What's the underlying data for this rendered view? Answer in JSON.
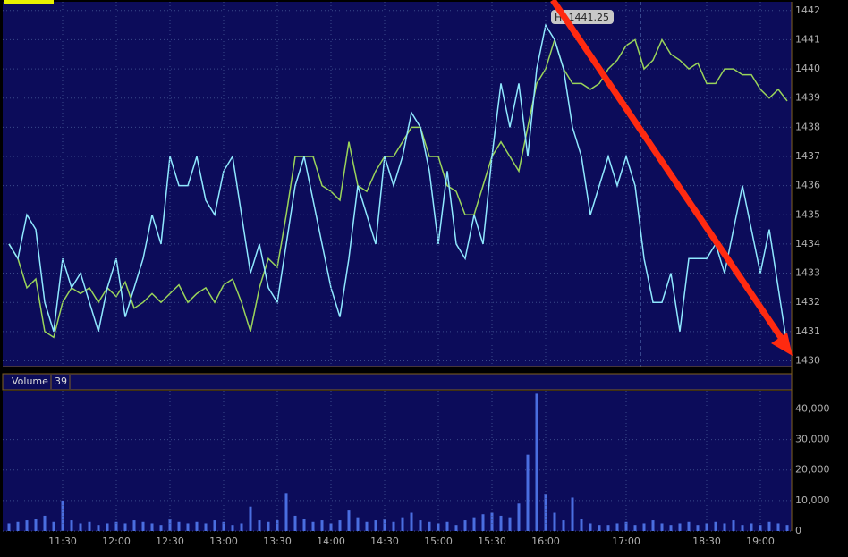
{
  "chart_data": [
    {
      "type": "line",
      "annotation": "H: 1441.25",
      "categories": [
        null,
        null,
        null,
        null,
        null,
        null,
        "11:30",
        null,
        null,
        null,
        null,
        null,
        "12:00",
        null,
        null,
        null,
        null,
        null,
        "12:30",
        null,
        null,
        null,
        null,
        null,
        "13:00",
        null,
        null,
        null,
        null,
        null,
        "13:30",
        null,
        null,
        null,
        null,
        null,
        "14:00",
        null,
        null,
        null,
        null,
        null,
        "14:30",
        null,
        null,
        null,
        null,
        null,
        "15:00",
        null,
        null,
        null,
        null,
        null,
        "15:30",
        null,
        null,
        null,
        null,
        null,
        "16:00",
        null,
        null,
        null,
        null,
        null,
        null,
        null,
        null,
        "17:00",
        null,
        null,
        null,
        null,
        null,
        null,
        null,
        null,
        "18:30",
        null,
        null,
        null,
        null,
        null,
        "19:00",
        null,
        null,
        null
      ],
      "series": [
        {
          "color": "#9ad45a",
          "values": [
            1434,
            1433.5,
            1432.5,
            1432.8,
            1431,
            1430.8,
            1432,
            1432.5,
            1432.3,
            1432.5,
            1432,
            1432.5,
            1432.2,
            1432.7,
            1431.8,
            1432,
            1432.3,
            1432,
            1432.3,
            1432.6,
            1432,
            1432.3,
            1432.5,
            1432,
            1432.6,
            1432.8,
            1432,
            1431,
            1432.5,
            1433.5,
            1433.2,
            1435,
            1437,
            1437,
            1437,
            1436,
            1435.8,
            1435.5,
            1437.5,
            1436,
            1435.8,
            1436.5,
            1437,
            1437,
            1437.5,
            1438,
            1438,
            1437,
            1437,
            1436,
            1435.8,
            1435,
            1435,
            1436,
            1437,
            1437.5,
            1437,
            1436.5,
            1438,
            1439.5,
            1440,
            1441,
            1440,
            1439.5,
            1439.5,
            1439.3,
            1439.5,
            1440,
            1440.3,
            1440.8,
            1441,
            1440,
            1440.3,
            1441,
            1440.5,
            1440.3,
            1440,
            1440.2,
            1439.5,
            1439.5,
            1440,
            1440,
            1439.8,
            1439.8,
            1439.3,
            1439,
            1439.3,
            1438.9
          ]
        },
        {
          "color": "#8fe8ff",
          "values": [
            1434,
            1433.5,
            1435,
            1434.5,
            1432,
            1431,
            1433.5,
            1432.5,
            1433,
            1432,
            1431,
            1432.5,
            1433.5,
            1431.5,
            1432.5,
            1433.5,
            1435,
            1434,
            1437,
            1436,
            1436,
            1437,
            1435.5,
            1435,
            1436.5,
            1437,
            1435,
            1433,
            1434,
            1432.5,
            1432,
            1434,
            1436,
            1437,
            1435.5,
            1434,
            1432.5,
            1431.5,
            1433.5,
            1436,
            1435,
            1434,
            1437,
            1436,
            1437,
            1438.5,
            1438,
            1436.5,
            1434,
            1436.5,
            1434,
            1433.5,
            1435,
            1434,
            1437,
            1439.5,
            1438,
            1439.5,
            1437,
            1440,
            1441.5,
            1441,
            1440,
            1438,
            1437,
            1435,
            1436,
            1437,
            1436,
            1437,
            1436,
            1433.5,
            1432,
            1432,
            1433,
            1431,
            1433.5,
            1433.5,
            1433.5,
            1434,
            1433,
            1434.5,
            1436,
            1434.5,
            1433,
            1434.5,
            1432.5,
            1430.5
          ]
        }
      ],
      "ylim": [
        1429.8,
        1442.3
      ],
      "yticks": [
        1430,
        1431,
        1432,
        1433,
        1434,
        1435,
        1436,
        1437,
        1438,
        1439,
        1440,
        1441,
        1442
      ],
      "grid": true
    },
    {
      "type": "bar",
      "title": "Volume",
      "annotation": "39",
      "color": "#4a6ee0",
      "values": [
        2500,
        3000,
        3500,
        4000,
        5000,
        3000,
        10000,
        3500,
        2500,
        3000,
        2000,
        2500,
        3000,
        2500,
        3500,
        3000,
        2500,
        2000,
        4000,
        3000,
        2500,
        3000,
        2500,
        3500,
        3000,
        2000,
        2500,
        8000,
        3500,
        3000,
        3500,
        12500,
        5000,
        4000,
        3000,
        3500,
        2500,
        3500,
        7000,
        4500,
        3000,
        3500,
        4000,
        3000,
        4500,
        6000,
        3500,
        3000,
        2500,
        3000,
        2000,
        3500,
        4500,
        5500,
        6000,
        5000,
        4500,
        9000,
        25000,
        45000,
        12000,
        6000,
        3500,
        11000,
        4000,
        2500,
        2000,
        2000,
        2500,
        3000,
        2000,
        2500,
        3500,
        2500,
        2000,
        2500,
        3000,
        2000,
        2500,
        3000,
        2500,
        3500,
        2000,
        2500,
        2000,
        3000,
        2500,
        2000
      ],
      "ylim": [
        0,
        46000
      ],
      "yticks": [
        0,
        {
          "value": 10000,
          "label": "10,000"
        },
        {
          "value": 20000,
          "label": "20,000"
        },
        {
          "value": 30000,
          "label": "30,000"
        },
        {
          "value": 40000,
          "label": "40,000"
        }
      ],
      "grid": true
    }
  ]
}
